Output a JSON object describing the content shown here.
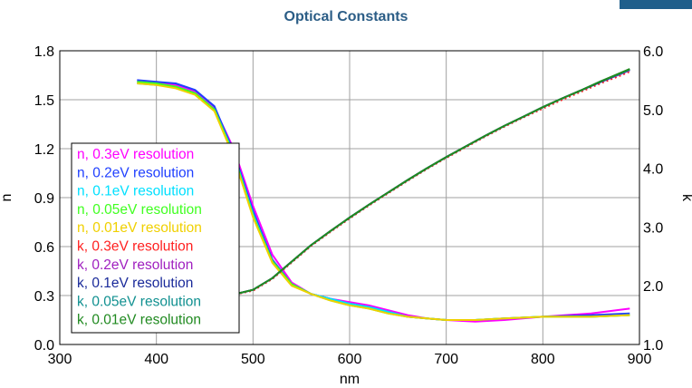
{
  "chart_data": {
    "type": "line",
    "title": "Optical Constants",
    "xlabel": "nm",
    "ylabel_left": "n",
    "ylabel_right": "k",
    "xlim": [
      300,
      900
    ],
    "ylim_left": [
      0.0,
      1.8
    ],
    "ylim_right": [
      1.0,
      6.0
    ],
    "x_ticks": [
      "300",
      "400",
      "500",
      "600",
      "700",
      "800",
      "900"
    ],
    "y_left_ticks": [
      "0.0",
      "0.3",
      "0.6",
      "0.9",
      "1.2",
      "1.5",
      "1.8"
    ],
    "y_right_ticks": [
      "1.0",
      "2.0",
      "3.0",
      "4.0",
      "5.0",
      "6.0"
    ],
    "grid": true,
    "legend_position": "left",
    "series": [
      {
        "name": "n, 0.3eV resolution",
        "axis": "left",
        "color": "#ff00ff",
        "style": "solid",
        "x": [
          380,
          400,
          420,
          440,
          460,
          480,
          500,
          520,
          540,
          560,
          580,
          600,
          620,
          640,
          660,
          680,
          700,
          730,
          760,
          800,
          850,
          890
        ],
        "y": [
          1.61,
          1.6,
          1.59,
          1.55,
          1.45,
          1.2,
          0.85,
          0.55,
          0.38,
          0.31,
          0.28,
          0.26,
          0.24,
          0.21,
          0.18,
          0.16,
          0.15,
          0.14,
          0.15,
          0.17,
          0.19,
          0.22
        ]
      },
      {
        "name": "n, 0.2eV resolution",
        "axis": "left",
        "color": "#2040ff",
        "style": "solid",
        "x": [
          380,
          400,
          420,
          440,
          460,
          480,
          500,
          520,
          540,
          560,
          580,
          600,
          620,
          640,
          660,
          680,
          700,
          730,
          760,
          800,
          850,
          890
        ],
        "y": [
          1.62,
          1.61,
          1.6,
          1.56,
          1.46,
          1.18,
          0.82,
          0.52,
          0.37,
          0.31,
          0.28,
          0.25,
          0.23,
          0.2,
          0.17,
          0.16,
          0.15,
          0.15,
          0.16,
          0.17,
          0.18,
          0.19
        ]
      },
      {
        "name": "n, 0.1eV resolution",
        "axis": "left",
        "color": "#00e0ff",
        "style": "solid",
        "x": [
          380,
          400,
          420,
          440,
          460,
          480,
          500,
          520,
          540,
          560,
          580,
          600,
          620,
          640,
          660,
          680,
          700,
          730,
          760,
          800,
          850,
          890
        ],
        "y": [
          1.6,
          1.59,
          1.58,
          1.54,
          1.44,
          1.17,
          0.8,
          0.51,
          0.37,
          0.31,
          0.28,
          0.25,
          0.23,
          0.2,
          0.17,
          0.16,
          0.15,
          0.15,
          0.16,
          0.17,
          0.17,
          0.18
        ]
      },
      {
        "name": "n, 0.05eV resolution",
        "axis": "left",
        "color": "#40ff20",
        "style": "solid",
        "x": [
          380,
          400,
          420,
          440,
          460,
          480,
          500,
          520,
          540,
          560,
          580,
          600,
          620,
          640,
          660,
          680,
          700,
          730,
          760,
          800,
          850,
          890
        ],
        "y": [
          1.61,
          1.6,
          1.58,
          1.54,
          1.44,
          1.16,
          0.79,
          0.51,
          0.37,
          0.31,
          0.27,
          0.24,
          0.22,
          0.19,
          0.17,
          0.16,
          0.15,
          0.15,
          0.16,
          0.17,
          0.17,
          0.18
        ]
      },
      {
        "name": "n, 0.01eV resolution",
        "axis": "left",
        "color": "#f0d000",
        "style": "solid",
        "x": [
          380,
          400,
          420,
          440,
          460,
          480,
          500,
          520,
          540,
          560,
          580,
          600,
          620,
          640,
          660,
          680,
          700,
          730,
          760,
          800,
          850,
          890
        ],
        "y": [
          1.6,
          1.59,
          1.57,
          1.53,
          1.43,
          1.15,
          0.78,
          0.5,
          0.36,
          0.31,
          0.27,
          0.24,
          0.22,
          0.19,
          0.17,
          0.16,
          0.15,
          0.15,
          0.16,
          0.17,
          0.17,
          0.18
        ]
      },
      {
        "name": "k, 0.3eV resolution",
        "axis": "right",
        "color": "#ff2020",
        "style": "dotted",
        "x": [
          440,
          460,
          480,
          500,
          520,
          540,
          560,
          580,
          600,
          620,
          640,
          660,
          680,
          700,
          720,
          740,
          760,
          780,
          800,
          820,
          840,
          860,
          880,
          890
        ],
        "y": [
          1.82,
          1.83,
          1.85,
          1.92,
          2.12,
          2.4,
          2.68,
          2.92,
          3.15,
          3.37,
          3.58,
          3.79,
          3.99,
          4.18,
          4.36,
          4.54,
          4.71,
          4.87,
          5.02,
          5.17,
          5.31,
          5.45,
          5.58,
          5.65
        ]
      },
      {
        "name": "k, 0.2eV resolution",
        "axis": "right",
        "color": "#a020c0",
        "style": "solid",
        "x": [
          440,
          460,
          480,
          500,
          520,
          540,
          560,
          580,
          600,
          620,
          640,
          660,
          680,
          700,
          720,
          740,
          760,
          780,
          800,
          820,
          840,
          860,
          880,
          890
        ],
        "y": [
          1.82,
          1.83,
          1.85,
          1.93,
          2.13,
          2.41,
          2.69,
          2.93,
          3.16,
          3.38,
          3.59,
          3.8,
          4.0,
          4.19,
          4.37,
          4.55,
          4.72,
          4.88,
          5.04,
          5.19,
          5.33,
          5.47,
          5.6,
          5.67
        ]
      },
      {
        "name": "k, 0.1eV resolution",
        "axis": "right",
        "color": "#1a2a9a",
        "style": "solid",
        "x": [
          440,
          460,
          480,
          500,
          520,
          540,
          560,
          580,
          600,
          620,
          640,
          660,
          680,
          700,
          720,
          740,
          760,
          780,
          800,
          820,
          840,
          860,
          880,
          890
        ],
        "y": [
          1.82,
          1.83,
          1.85,
          1.93,
          2.13,
          2.41,
          2.69,
          2.93,
          3.16,
          3.38,
          3.59,
          3.8,
          4.0,
          4.19,
          4.37,
          4.55,
          4.72,
          4.88,
          5.04,
          5.19,
          5.33,
          5.47,
          5.61,
          5.68
        ]
      },
      {
        "name": "k, 0.05eV resolution",
        "axis": "right",
        "color": "#109090",
        "style": "solid",
        "x": [
          440,
          460,
          480,
          500,
          520,
          540,
          560,
          580,
          600,
          620,
          640,
          660,
          680,
          700,
          720,
          740,
          760,
          780,
          800,
          820,
          840,
          860,
          880,
          890
        ],
        "y": [
          1.82,
          1.83,
          1.85,
          1.93,
          2.13,
          2.41,
          2.69,
          2.93,
          3.16,
          3.38,
          3.59,
          3.8,
          4.0,
          4.19,
          4.37,
          4.55,
          4.72,
          4.88,
          5.04,
          5.19,
          5.33,
          5.48,
          5.61,
          5.68
        ]
      },
      {
        "name": "k, 0.01eV resolution",
        "axis": "right",
        "color": "#208a20",
        "style": "solid",
        "x": [
          440,
          460,
          480,
          500,
          520,
          540,
          560,
          580,
          600,
          620,
          640,
          660,
          680,
          700,
          720,
          740,
          760,
          780,
          800,
          820,
          840,
          860,
          880,
          890
        ],
        "y": [
          1.82,
          1.83,
          1.85,
          1.93,
          2.13,
          2.41,
          2.69,
          2.93,
          3.16,
          3.38,
          3.59,
          3.8,
          4.0,
          4.19,
          4.37,
          4.55,
          4.72,
          4.88,
          5.04,
          5.19,
          5.33,
          5.48,
          5.62,
          5.69
        ]
      }
    ]
  }
}
